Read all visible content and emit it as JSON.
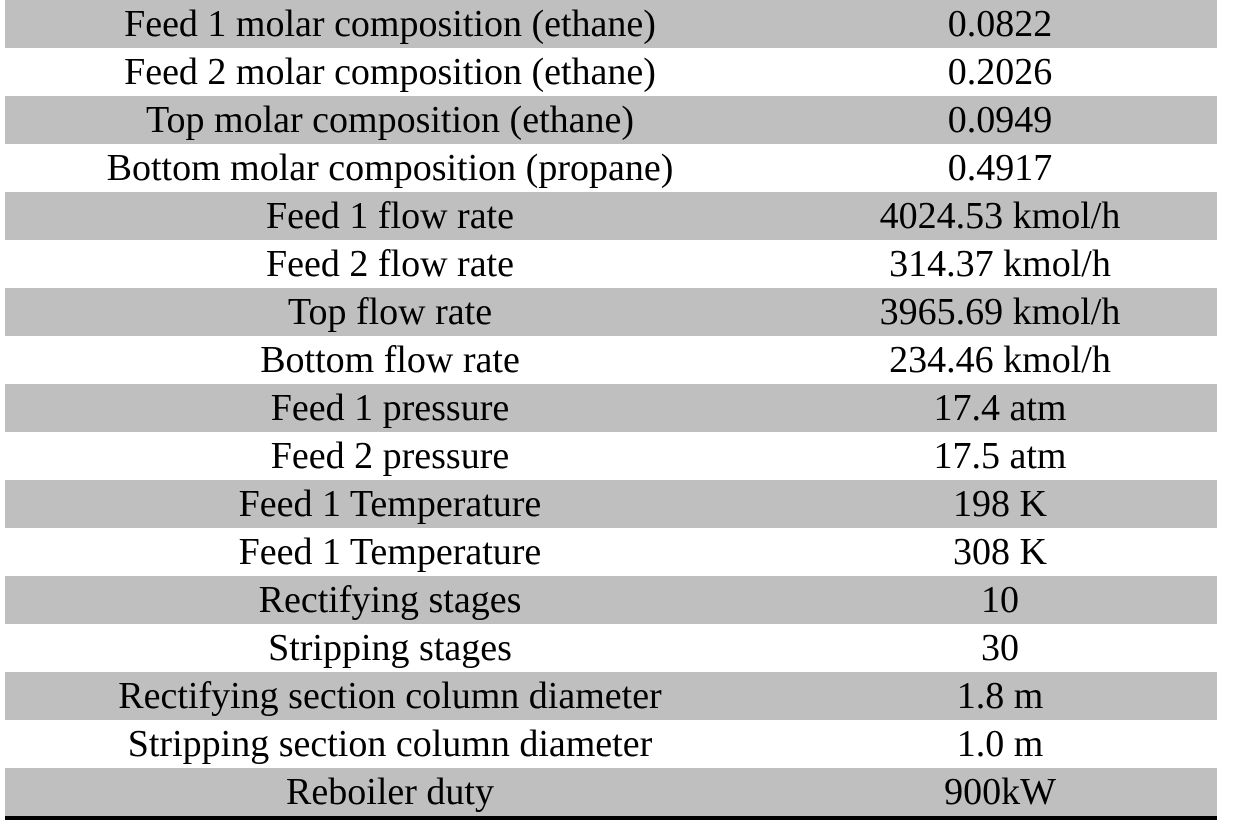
{
  "rows": [
    {
      "label": "Feed 1 molar composition (ethane)",
      "value": "0.0822"
    },
    {
      "label": "Feed 2 molar composition (ethane)",
      "value": "0.2026"
    },
    {
      "label": "Top molar composition (ethane)",
      "value": "0.0949"
    },
    {
      "label": "Bottom molar composition (propane)",
      "value": "0.4917"
    },
    {
      "label": "Feed 1 flow rate",
      "value": "4024.53 kmol/h"
    },
    {
      "label": "Feed 2 flow rate",
      "value": "314.37 kmol/h"
    },
    {
      "label": "Top flow rate",
      "value": "3965.69 kmol/h"
    },
    {
      "label": "Bottom flow rate",
      "value": "234.46 kmol/h"
    },
    {
      "label": "Feed 1 pressure",
      "value": "17.4 atm"
    },
    {
      "label": "Feed 2 pressure",
      "value": "17.5 atm"
    },
    {
      "label": "Feed 1 Temperature",
      "value": "198 K"
    },
    {
      "label": "Feed 1 Temperature",
      "value": "308 K"
    },
    {
      "label": "Rectifying stages",
      "value": "10"
    },
    {
      "label": "Stripping stages",
      "value": "30"
    },
    {
      "label": "Rectifying section column diameter",
      "value": "1.8 m"
    },
    {
      "label": "Stripping section column diameter",
      "value": "1.0 m"
    },
    {
      "label": "Reboiler duty",
      "value": "900kW"
    }
  ],
  "colors": {
    "shade": "#bfbfbf",
    "rule": "#000000"
  }
}
